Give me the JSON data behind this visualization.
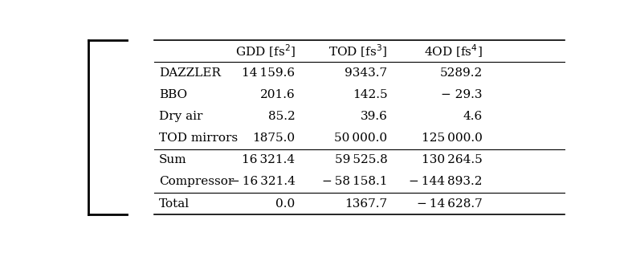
{
  "col_headers": [
    "",
    "GDD [fs$^2$]",
    "TOD [fs$^3$]",
    "4OD [fs$^4$]"
  ],
  "rows": [
    [
      "DAZZLER",
      "14 159.6",
      "9343.7",
      "5289.2"
    ],
    [
      "BBO",
      "201.6",
      "142.5",
      "− 29.3"
    ],
    [
      "Dry air",
      "85.2",
      "39.6",
      "4.6"
    ],
    [
      "TOD mirrors",
      "1875.0",
      "50 000.0",
      "125 000.0"
    ],
    [
      "Sum",
      "16 321.4",
      "59 525.8",
      "130 264.5"
    ],
    [
      "Compressor",
      "− 16 321.4",
      "− 58 158.1",
      "− 144 893.2"
    ],
    [
      "Total",
      "0.0",
      "1367.7",
      "− 14 628.7"
    ]
  ],
  "section_breaks_after": [
    3,
    5
  ],
  "background_color": "#ffffff",
  "text_color": "#000000",
  "font_size": 11
}
